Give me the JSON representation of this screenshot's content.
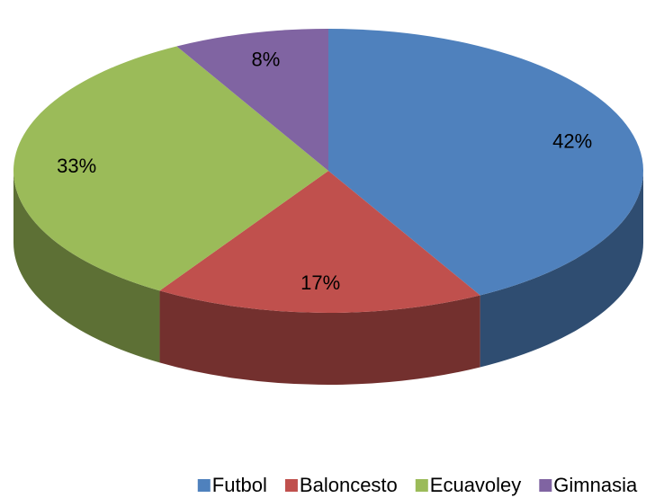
{
  "chart_data": {
    "type": "pie",
    "categories": [
      "Futbol",
      "Baloncesto",
      "Ecuavoley",
      "Gimnasia"
    ],
    "values": [
      42,
      17,
      33,
      8
    ],
    "value_labels": [
      "42%",
      "17%",
      "33%",
      "8%"
    ],
    "colors": [
      "#4f81bd",
      "#c0504d",
      "#9bbb59",
      "#8064a2"
    ],
    "legend": "bottom"
  }
}
